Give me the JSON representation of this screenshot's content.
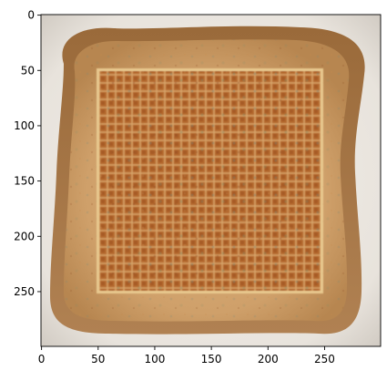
{
  "figure": {
    "image_subject": "toast-slice-with-grid-patch",
    "x_axis": {
      "ticks": [
        0,
        50,
        100,
        150,
        200,
        250
      ],
      "limits": [
        0,
        299
      ]
    },
    "y_axis": {
      "ticks": [
        0,
        50,
        100,
        150,
        200,
        250
      ],
      "limits": [
        0,
        299
      ],
      "inverted": true
    },
    "patch_region_pixels": {
      "x": [
        50,
        250
      ],
      "y": [
        50,
        250
      ]
    },
    "colors": {
      "background": "#e6e2dc",
      "crust": "#a47645",
      "crumb": "#cfa674",
      "patch_orange": "#b86a2e",
      "patch_grid": "#d8a767",
      "patch_border": "#e8c88e"
    }
  }
}
